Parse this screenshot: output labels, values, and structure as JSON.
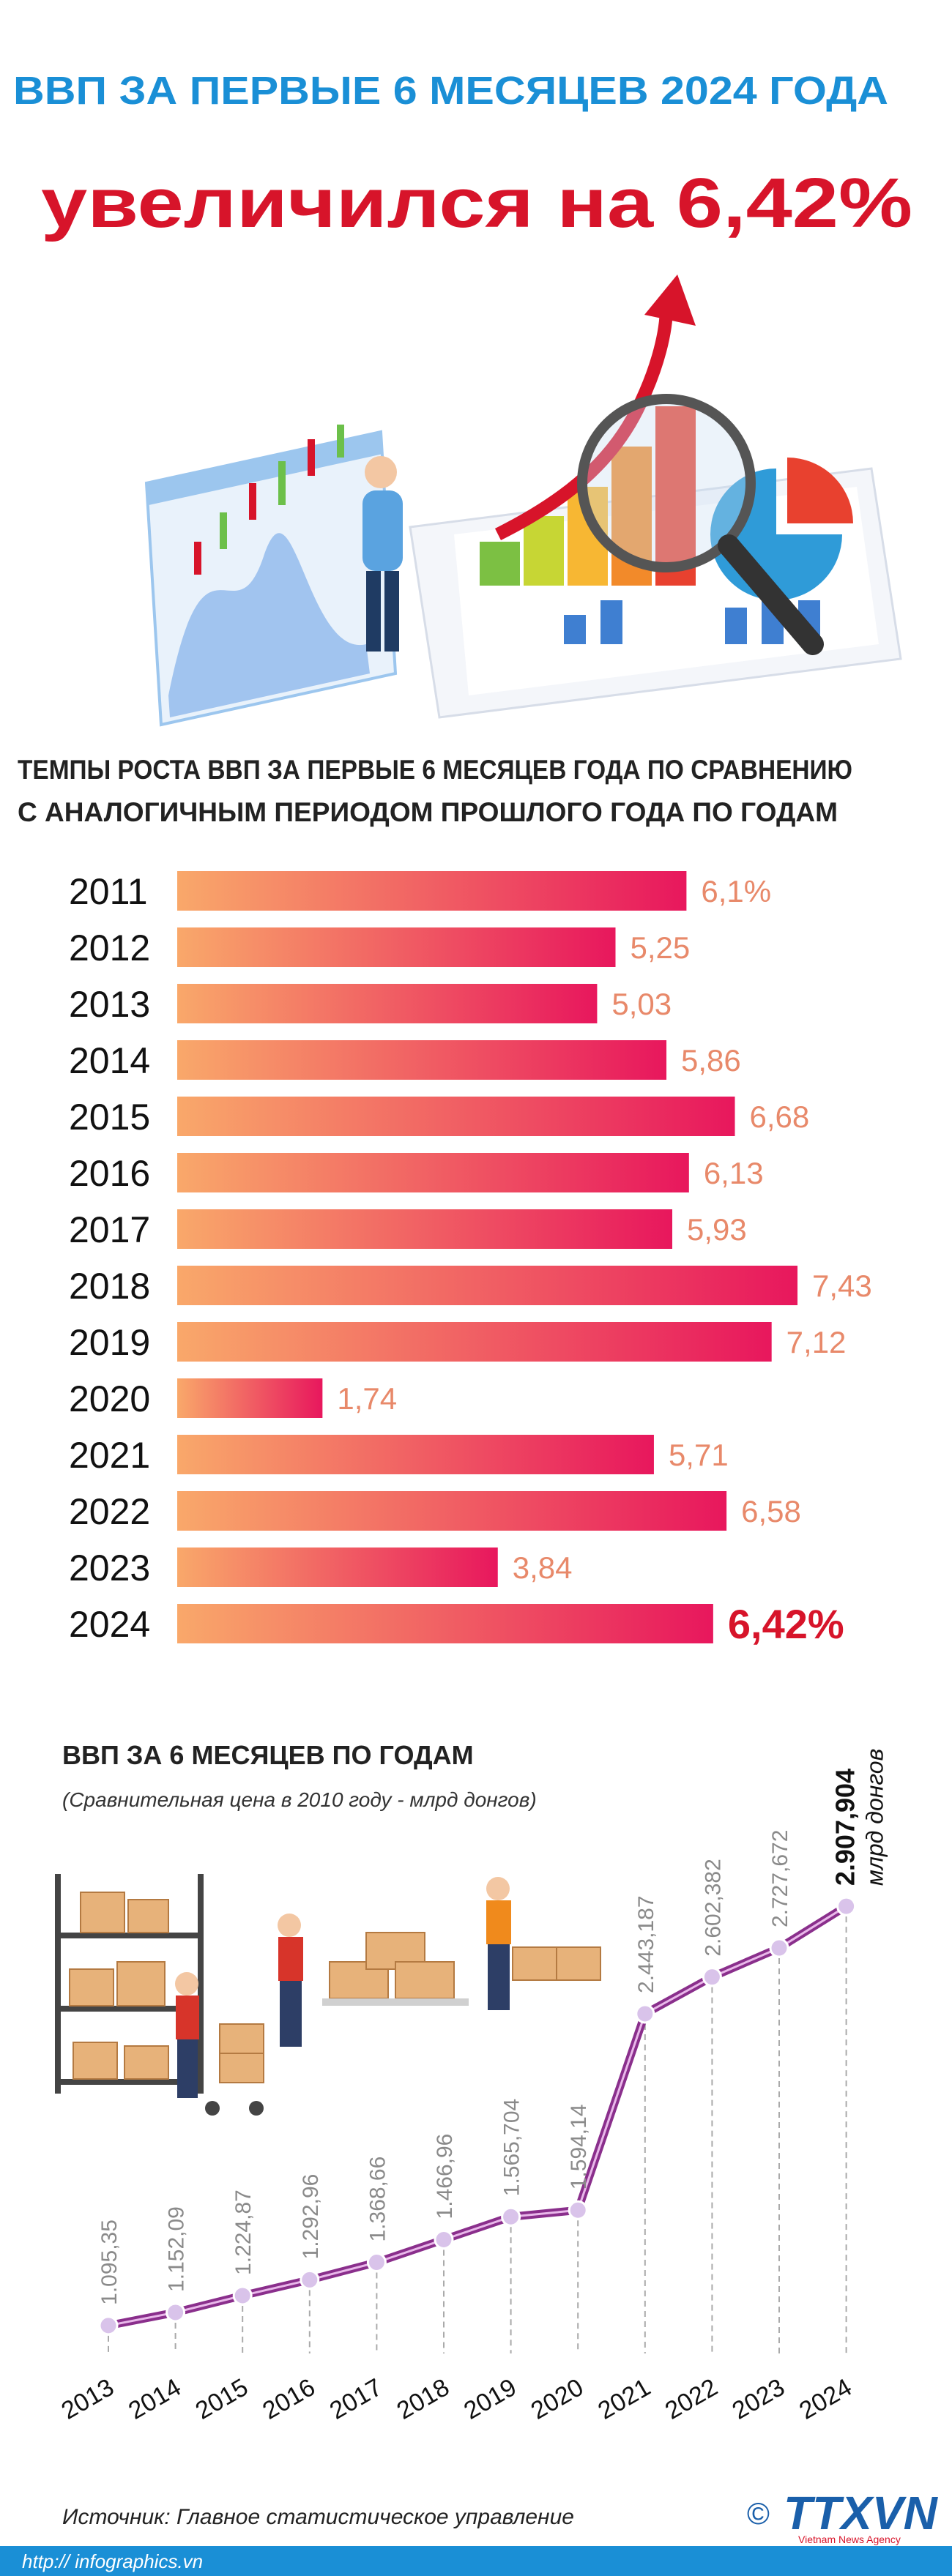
{
  "header": {
    "title": "ВВП ЗА ПЕРВЫЕ 6 МЕСЯЦЕВ 2024 ГОДА",
    "headline": "увеличился на 6,42%"
  },
  "chart_data": [
    {
      "type": "bar",
      "title": [
        "ТЕМПЫ РОСТА ВВП ЗА ПЕРВЫЕ 6 МЕСЯЦЕВ ГОДА ПО СРАВНЕНИЮ",
        "С АНАЛОГИЧНЫМ ПЕРИОДОМ ПРОШЛОГО ГОДА ПО ГОДАМ"
      ],
      "categories": [
        "2011",
        "2012",
        "2013",
        "2014",
        "2015",
        "2016",
        "2017",
        "2018",
        "2019",
        "2020",
        "2021",
        "2022",
        "2023",
        "2024"
      ],
      "values": [
        6.1,
        5.25,
        5.03,
        5.86,
        6.68,
        6.13,
        5.93,
        7.43,
        7.12,
        1.74,
        5.71,
        6.58,
        3.84,
        6.42
      ],
      "value_labels": [
        "6,1%",
        "5,25",
        "5,03",
        "5,86",
        "6,68",
        "6,13",
        "5,93",
        "7,43",
        "7,12",
        "1,74",
        "5,71",
        "6,58",
        "3,84",
        "6,42%"
      ],
      "color": [
        "#f9a86a",
        "#e8175d"
      ]
    },
    {
      "type": "line",
      "title": "ВВП ЗА 6 МЕСЯЦЕВ ПО ГОДАМ",
      "subtitle": "(Сравнительная цена в 2010 году - млрд донгов)",
      "categories": [
        "2013",
        "2014",
        "2015",
        "2016",
        "2017",
        "2018",
        "2019",
        "2020",
        "2021",
        "2022",
        "2023",
        "2024"
      ],
      "values": [
        1095.35,
        1152.09,
        1224.87,
        1292.96,
        1368.66,
        1466.96,
        1565.704,
        1594.14,
        2443.187,
        2602.382,
        2727.672,
        2907.904
      ],
      "value_labels": [
        "1.095,35",
        "1.152,09",
        "1.224,87",
        "1.292,96",
        "1.368,66",
        "1.466,96",
        "1.565,704",
        "1.594,14",
        "2.443,187",
        "2.602,382",
        "2.727,672",
        "2.907,904"
      ],
      "annotation": "млрд донгов",
      "color": "#8a2f8c"
    }
  ],
  "footer": {
    "source": "Источник: Главное статистическое управление",
    "url": "http:// infographics.vn",
    "copyright": "©",
    "logo": "TTXVN",
    "agency": "Vietnam News Agency"
  }
}
